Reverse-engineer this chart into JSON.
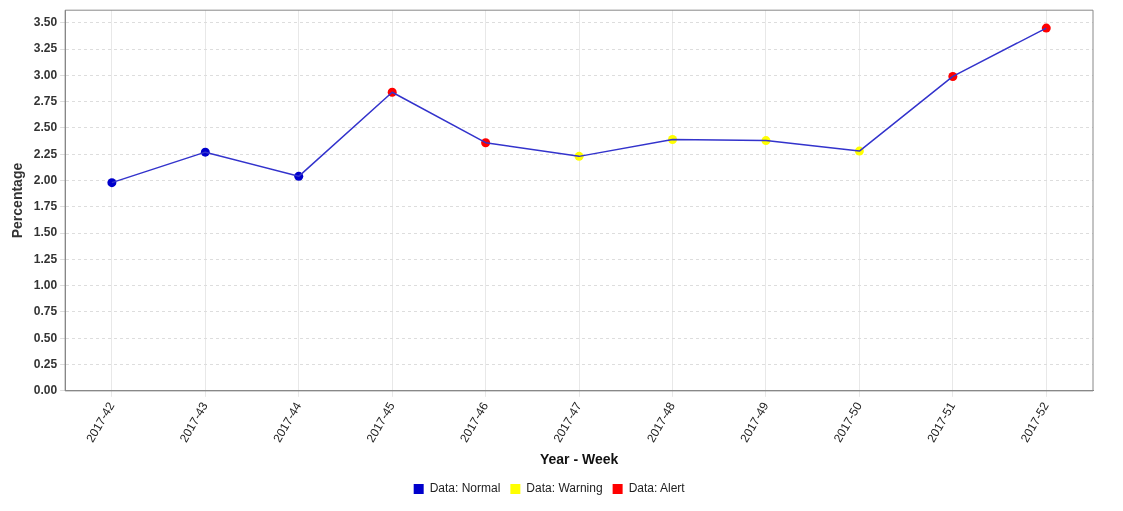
{
  "chart_data": {
    "type": "line",
    "xlabel": "Year - Week",
    "ylabel": "Percentage",
    "categories": [
      "2017-42",
      "2017-43",
      "2017-44",
      "2017-45",
      "2017-46",
      "2017-47",
      "2017-48",
      "2017-49",
      "2017-50",
      "2017-51",
      "2017-52"
    ],
    "series": [
      {
        "type": "line",
        "color": "#3333cc",
        "marker": "none",
        "values": [
          1.98,
          2.27,
          2.04,
          2.84,
          2.36,
          2.23,
          2.39,
          2.38,
          2.28,
          2.99,
          3.45
        ]
      },
      {
        "type": "scatter",
        "name": "Data: Normal",
        "color": "#0000cc",
        "values": [
          1.98,
          2.27,
          2.04,
          null,
          null,
          null,
          null,
          null,
          null,
          null,
          null
        ]
      },
      {
        "type": "scatter",
        "name": "Data: Warning",
        "color": "#ffff00",
        "values": [
          null,
          null,
          null,
          null,
          null,
          2.23,
          2.39,
          2.38,
          2.28,
          null,
          null
        ]
      },
      {
        "type": "scatter",
        "name": "Data: Alert",
        "color": "#ff0000",
        "values": [
          null,
          null,
          null,
          2.84,
          2.36,
          null,
          null,
          null,
          null,
          2.99,
          3.45
        ]
      }
    ],
    "ylim": [
      0,
      3.62
    ],
    "yticks": [
      {
        "value": 0,
        "label": "0.00"
      },
      {
        "value": 0.25,
        "label": "0.25"
      },
      {
        "value": 0.5,
        "label": "0.50"
      },
      {
        "value": 0.75,
        "label": "0.75"
      },
      {
        "value": 1,
        "label": "1.00"
      },
      {
        "value": 1.25,
        "label": "1.25"
      },
      {
        "value": 1.5,
        "label": "1.50"
      },
      {
        "value": 1.75,
        "label": "1.75"
      },
      {
        "value": 2,
        "label": "2.00"
      },
      {
        "value": 2.25,
        "label": "2.25"
      },
      {
        "value": 2.5,
        "label": "2.50"
      },
      {
        "value": 2.75,
        "label": "2.75"
      },
      {
        "value": 3,
        "label": "3.00"
      },
      {
        "value": 3.25,
        "label": "3.25"
      },
      {
        "value": 3.5,
        "label": "3.50"
      }
    ],
    "grid": true,
    "legend": "bottom",
    "marker": "circle"
  }
}
